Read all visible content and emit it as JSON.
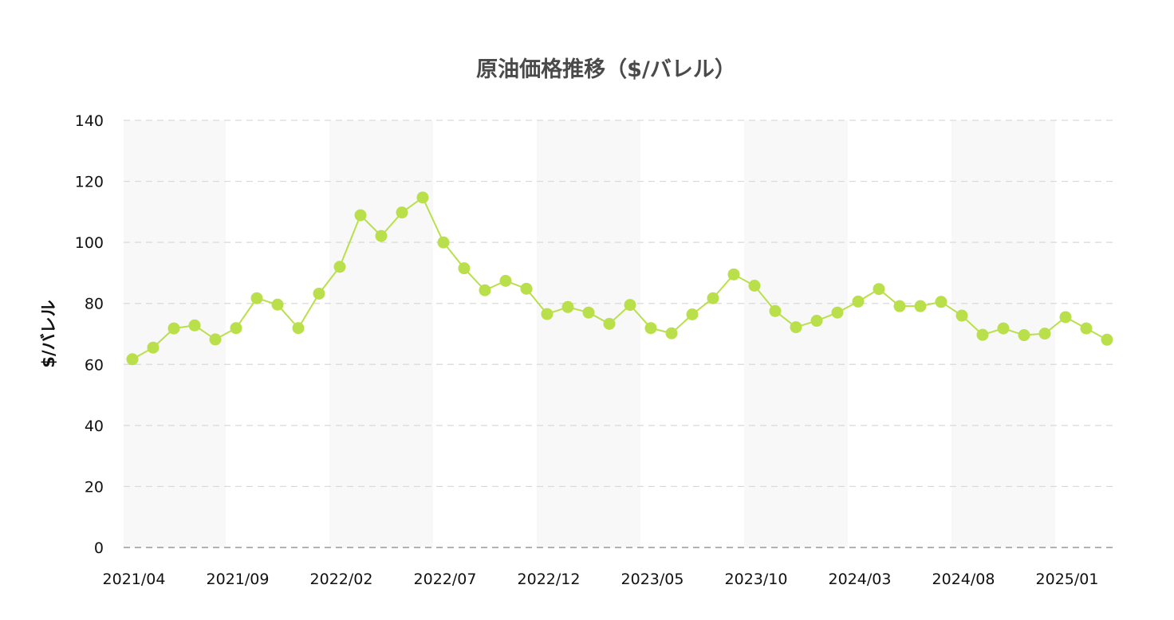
{
  "chart_data": {
    "type": "line",
    "title": "原油価格推移（$/バレル）",
    "xlabel": "",
    "ylabel": "$/バレル",
    "ylim": [
      0,
      140
    ],
    "yticks": [
      0,
      20,
      40,
      60,
      80,
      100,
      120,
      140
    ],
    "x_tick_labels": [
      "2021/04",
      "2021/09",
      "2022/02",
      "2022/07",
      "2022/12",
      "2023/05",
      "2023/10",
      "2024/03",
      "2024/08",
      "2025/01"
    ],
    "x_tick_every": 5,
    "grid": true,
    "legend": "none",
    "x": [
      "2021/04",
      "2021/05",
      "2021/06",
      "2021/07",
      "2021/08",
      "2021/09",
      "2021/10",
      "2021/11",
      "2021/12",
      "2022/01",
      "2022/02",
      "2022/03",
      "2022/04",
      "2022/05",
      "2022/06",
      "2022/07",
      "2022/08",
      "2022/09",
      "2022/10",
      "2022/11",
      "2022/12",
      "2023/01",
      "2023/02",
      "2023/03",
      "2023/04",
      "2023/05",
      "2023/06",
      "2023/07",
      "2023/08",
      "2023/09",
      "2023/10",
      "2023/11",
      "2023/12",
      "2024/01",
      "2024/02",
      "2024/03",
      "2024/04",
      "2024/05",
      "2024/06",
      "2024/07",
      "2024/08",
      "2024/09",
      "2024/10",
      "2024/11",
      "2024/12",
      "2025/01",
      "2025/02",
      "2025/03"
    ],
    "series": [
      {
        "values": [
          61.7,
          65.5,
          71.8,
          72.8,
          68.2,
          71.9,
          81.7,
          79.6,
          71.9,
          83.2,
          92.0,
          108.9,
          102.1,
          109.8,
          114.7,
          100.0,
          91.5,
          84.3,
          87.4,
          84.8,
          76.5,
          78.8,
          77.0,
          73.3,
          79.5,
          71.9,
          70.2,
          76.4,
          81.7,
          89.5,
          85.8,
          77.5,
          72.2,
          74.3,
          77.0,
          80.6,
          84.7,
          79.1,
          79.1,
          80.5,
          76.0,
          69.7,
          71.8,
          69.6,
          70.1,
          75.5,
          71.8,
          68.1
        ]
      }
    ],
    "colors": {
      "line": "#b9e04a",
      "marker": "#b9e04a",
      "grid": "#d9d9d9",
      "axis": "#999999",
      "band": "#f8f8f8",
      "title": "#4a4a4a",
      "text": "#111111"
    }
  }
}
